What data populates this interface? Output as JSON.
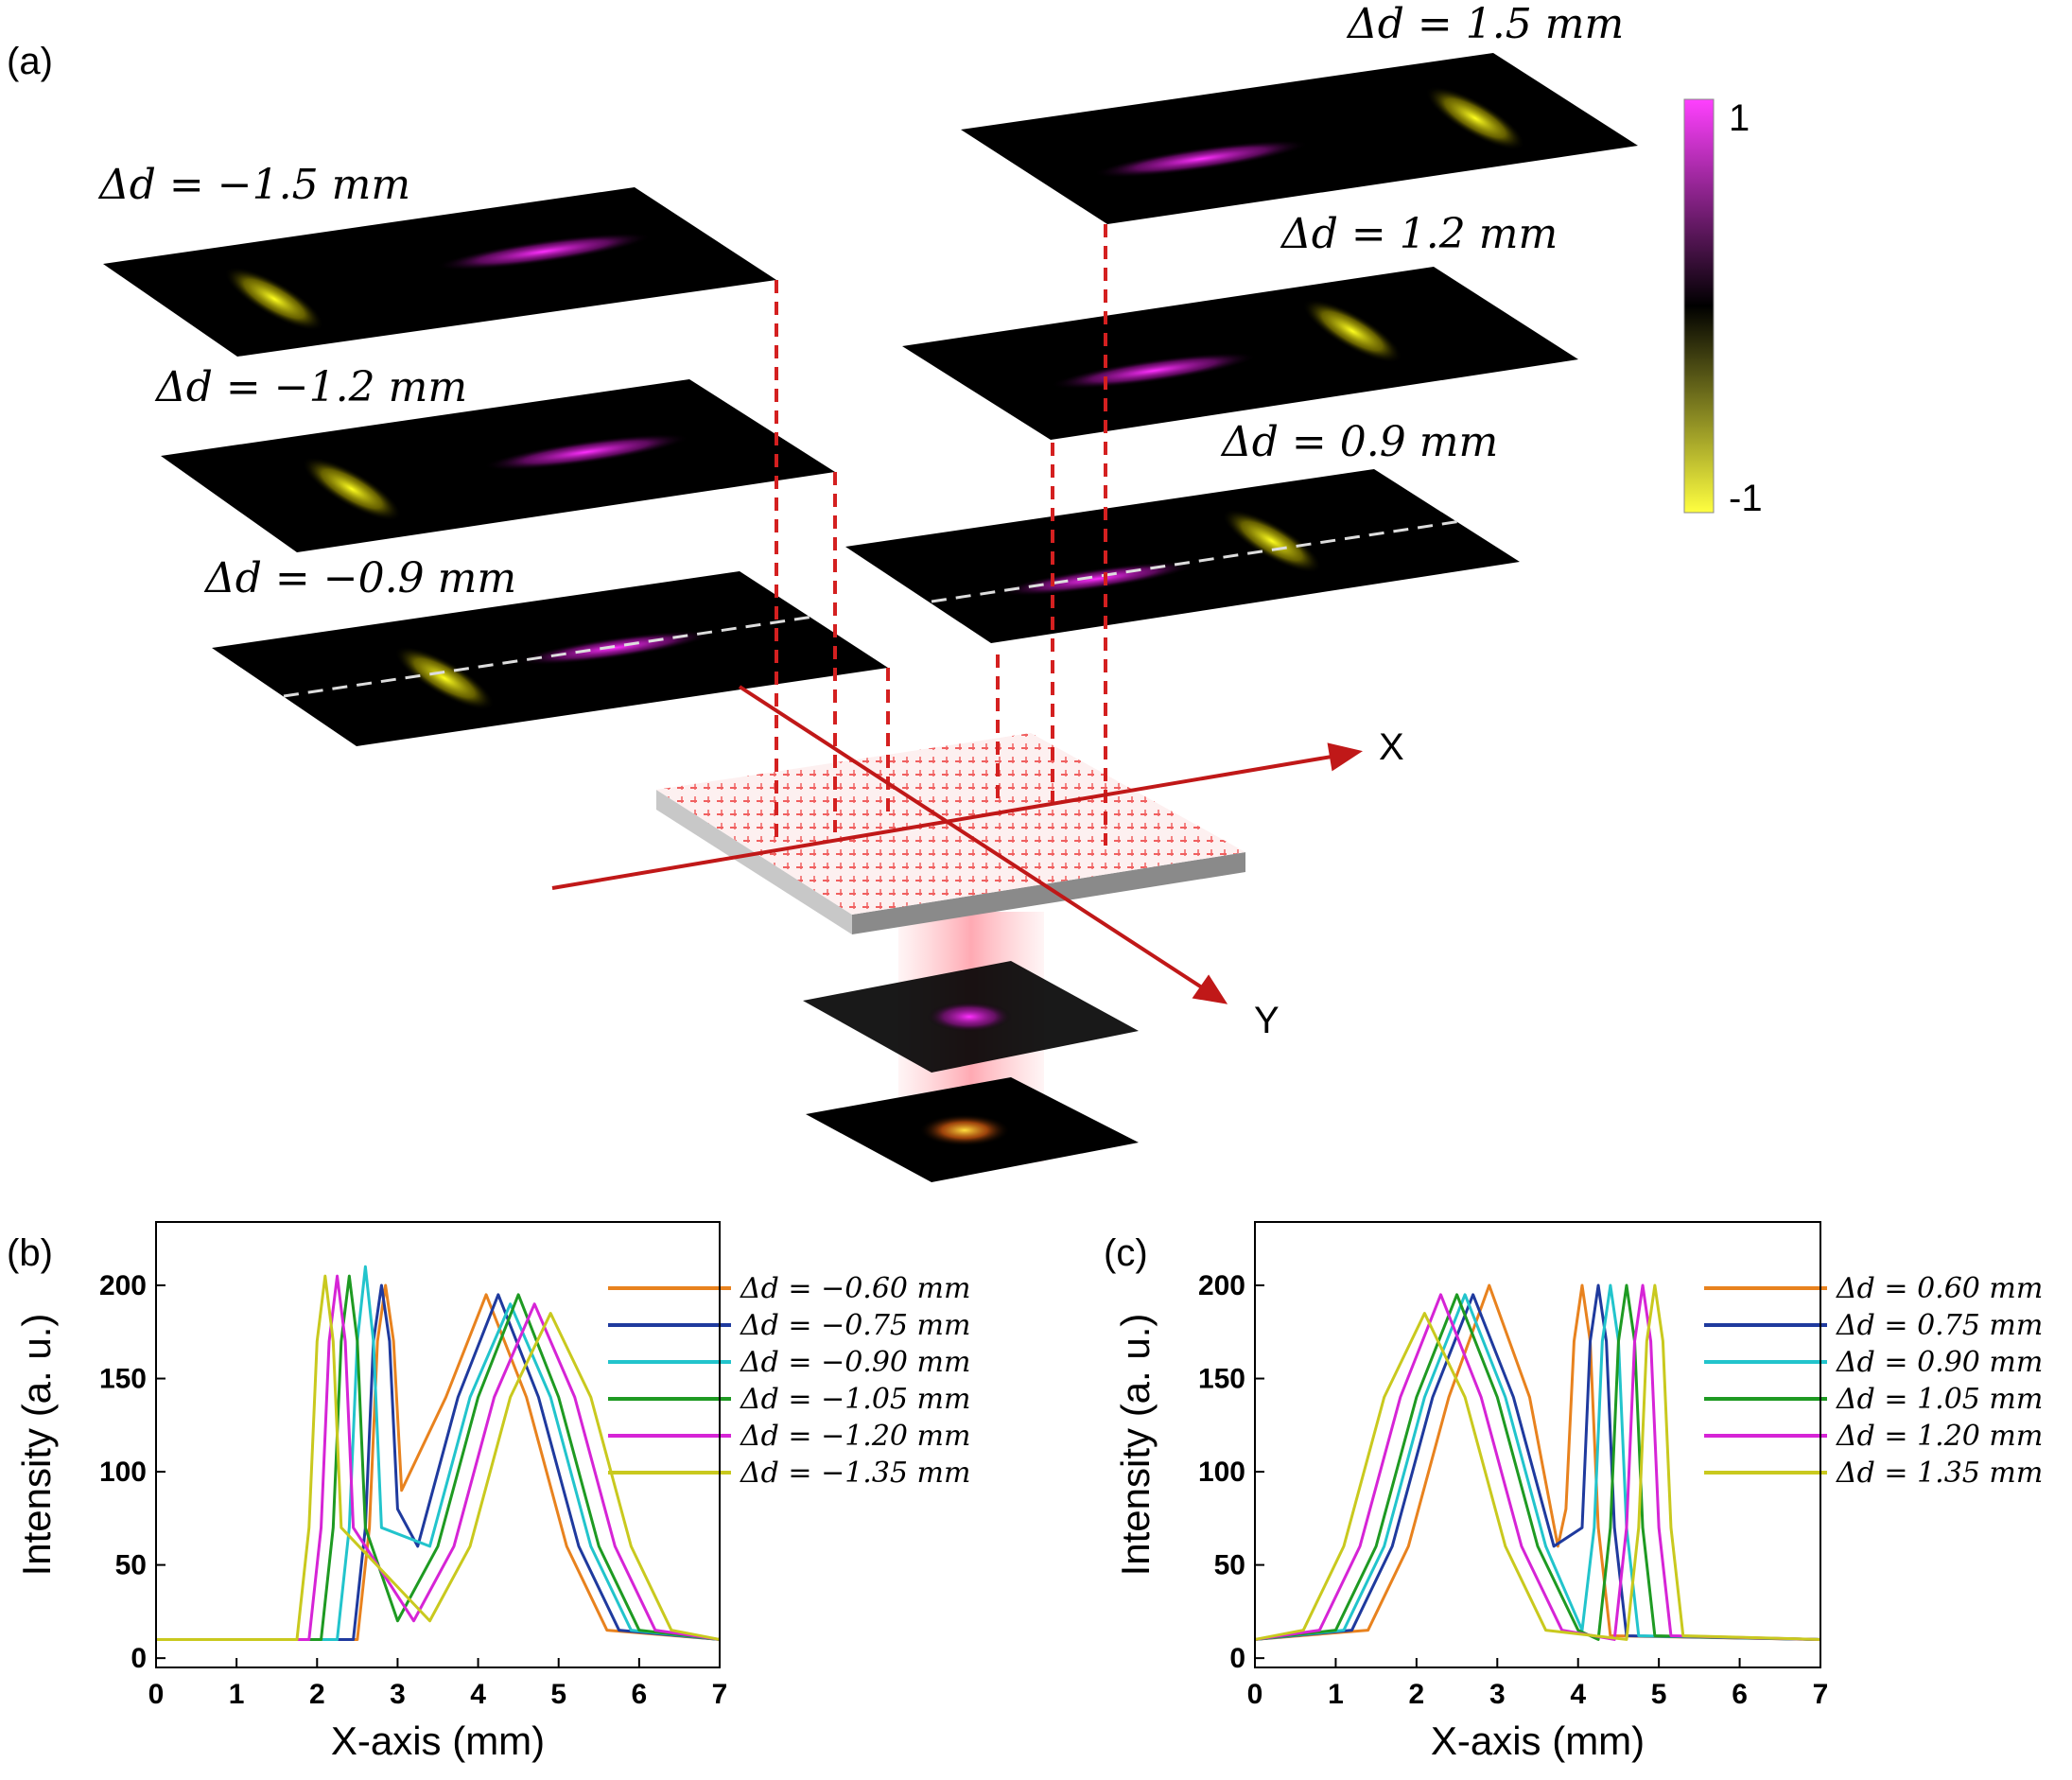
{
  "panel_labels": [
    "(a)",
    "(b)",
    "(c)"
  ],
  "diagram": {
    "plane_labels": [
      "Δd = −1.5 mm",
      "Δd = −1.2 mm",
      "Δd = −0.9 mm",
      "Δd = 1.5 mm",
      "Δd = 1.2 mm",
      "Δd = 0.9 mm"
    ],
    "colorbar": {
      "max": "1",
      "min": "-1"
    },
    "axes": {
      "x": "X",
      "y": "Y"
    }
  },
  "chart_data": [
    {
      "type": "line",
      "xlabel": "X-axis (mm)",
      "ylabel": "Intensity (a. u.)",
      "xlim": [
        0,
        7
      ],
      "xticks": [
        0,
        1,
        2,
        3,
        4,
        5,
        6,
        7
      ],
      "ylim": [
        -5,
        234
      ],
      "yticks": [
        0,
        50,
        100,
        150,
        200
      ],
      "series": [
        {
          "name": "Δd = −0.60 mm",
          "color": "#e8821e",
          "x": [
            0,
            2.5,
            2.65,
            2.75,
            2.85,
            2.95,
            3.05,
            3.6,
            4.1,
            4.6,
            5.1,
            5.6,
            7
          ],
          "values": [
            10,
            10,
            70,
            170,
            200,
            170,
            90,
            140,
            195,
            140,
            60,
            15,
            10
          ]
        },
        {
          "name": "Δd = −0.75 mm",
          "color": "#1f3a9e",
          "x": [
            0,
            2.45,
            2.6,
            2.7,
            2.8,
            2.9,
            3.0,
            3.25,
            3.75,
            4.25,
            4.75,
            5.25,
            5.75,
            7
          ],
          "values": [
            10,
            10,
            70,
            170,
            200,
            170,
            80,
            60,
            140,
            195,
            140,
            60,
            15,
            10
          ]
        },
        {
          "name": "Δd = −0.90 mm",
          "color": "#22c4cc",
          "x": [
            0,
            2.25,
            2.4,
            2.5,
            2.6,
            2.7,
            2.8,
            3.4,
            3.9,
            4.4,
            4.9,
            5.4,
            5.9,
            7
          ],
          "values": [
            10,
            10,
            70,
            170,
            210,
            170,
            70,
            60,
            140,
            190,
            140,
            60,
            15,
            10
          ]
        },
        {
          "name": "Δd = −1.05 mm",
          "color": "#1e9a22",
          "x": [
            0,
            2.05,
            2.2,
            2.3,
            2.4,
            2.5,
            2.6,
            3.0,
            3.5,
            4.0,
            4.5,
            5.0,
            5.5,
            6.0,
            7
          ],
          "values": [
            10,
            10,
            70,
            170,
            205,
            170,
            70,
            20,
            60,
            140,
            195,
            140,
            60,
            15,
            10
          ]
        },
        {
          "name": "Δd = −1.20 mm",
          "color": "#d624d6",
          "x": [
            0,
            1.9,
            2.05,
            2.15,
            2.25,
            2.35,
            2.45,
            3.2,
            3.7,
            4.2,
            4.7,
            5.2,
            5.7,
            6.2,
            7
          ],
          "values": [
            10,
            10,
            70,
            170,
            205,
            170,
            70,
            20,
            60,
            140,
            190,
            140,
            60,
            15,
            10
          ]
        },
        {
          "name": "Δd = −1.35 mm",
          "color": "#c9c91e",
          "x": [
            0,
            1.75,
            1.9,
            2.0,
            2.1,
            2.2,
            2.3,
            3.4,
            3.9,
            4.4,
            4.9,
            5.4,
            5.9,
            6.4,
            7
          ],
          "values": [
            10,
            10,
            70,
            170,
            205,
            170,
            70,
            20,
            60,
            140,
            185,
            140,
            60,
            15,
            10
          ]
        }
      ]
    },
    {
      "type": "line",
      "xlabel": "X-axis (mm)",
      "ylabel": "Intensity (a. u.)",
      "xlim": [
        0,
        7
      ],
      "xticks": [
        0,
        1,
        2,
        3,
        4,
        5,
        6,
        7
      ],
      "ylim": [
        -5,
        234
      ],
      "yticks": [
        0,
        50,
        100,
        150,
        200
      ],
      "series": [
        {
          "name": "Δd = 0.60 mm",
          "color": "#e8821e",
          "x": [
            0,
            1.4,
            1.9,
            2.4,
            2.9,
            3.4,
            3.75,
            3.85,
            3.95,
            4.05,
            4.15,
            4.25,
            4.4,
            7
          ],
          "values": [
            10,
            15,
            60,
            140,
            200,
            140,
            60,
            80,
            170,
            200,
            170,
            70,
            12,
            10
          ]
        },
        {
          "name": "Δd = 0.75 mm",
          "color": "#1f3a9e",
          "x": [
            0,
            1.2,
            1.7,
            2.2,
            2.7,
            3.2,
            3.7,
            4.05,
            4.15,
            4.25,
            4.35,
            4.45,
            4.6,
            7
          ],
          "values": [
            10,
            15,
            60,
            140,
            195,
            140,
            60,
            70,
            170,
            200,
            170,
            70,
            12,
            10
          ]
        },
        {
          "name": "Δd = 0.90 mm",
          "color": "#22c4cc",
          "x": [
            0,
            1.1,
            1.6,
            2.1,
            2.6,
            3.1,
            3.6,
            4.05,
            4.2,
            4.3,
            4.4,
            4.5,
            4.6,
            4.75,
            7
          ],
          "values": [
            10,
            15,
            60,
            140,
            195,
            140,
            60,
            15,
            70,
            170,
            200,
            170,
            70,
            12,
            10
          ]
        },
        {
          "name": "Δd = 1.05 mm",
          "color": "#1e9a22",
          "x": [
            0,
            1,
            1.5,
            2,
            2.5,
            3,
            3.5,
            4,
            4.25,
            4.4,
            4.5,
            4.6,
            4.7,
            4.8,
            4.95,
            7
          ],
          "values": [
            10,
            15,
            60,
            140,
            195,
            140,
            60,
            15,
            10,
            70,
            170,
            200,
            170,
            70,
            12,
            10
          ]
        },
        {
          "name": "Δd = 1.20 mm",
          "color": "#d624d6",
          "x": [
            0,
            0.8,
            1.3,
            1.8,
            2.3,
            2.8,
            3.3,
            3.8,
            4.45,
            4.6,
            4.7,
            4.8,
            4.9,
            5,
            5.15,
            7
          ],
          "values": [
            10,
            15,
            60,
            140,
            195,
            140,
            60,
            15,
            10,
            70,
            170,
            200,
            170,
            70,
            12,
            10
          ]
        },
        {
          "name": "Δd = 1.35 mm",
          "color": "#c9c91e",
          "x": [
            0,
            0.6,
            1.1,
            1.6,
            2.1,
            2.6,
            3.1,
            3.6,
            4.6,
            4.75,
            4.85,
            4.95,
            5.05,
            5.15,
            5.3,
            7
          ],
          "values": [
            10,
            15,
            60,
            140,
            185,
            140,
            60,
            15,
            10,
            70,
            170,
            200,
            170,
            70,
            12,
            10
          ]
        }
      ]
    }
  ]
}
